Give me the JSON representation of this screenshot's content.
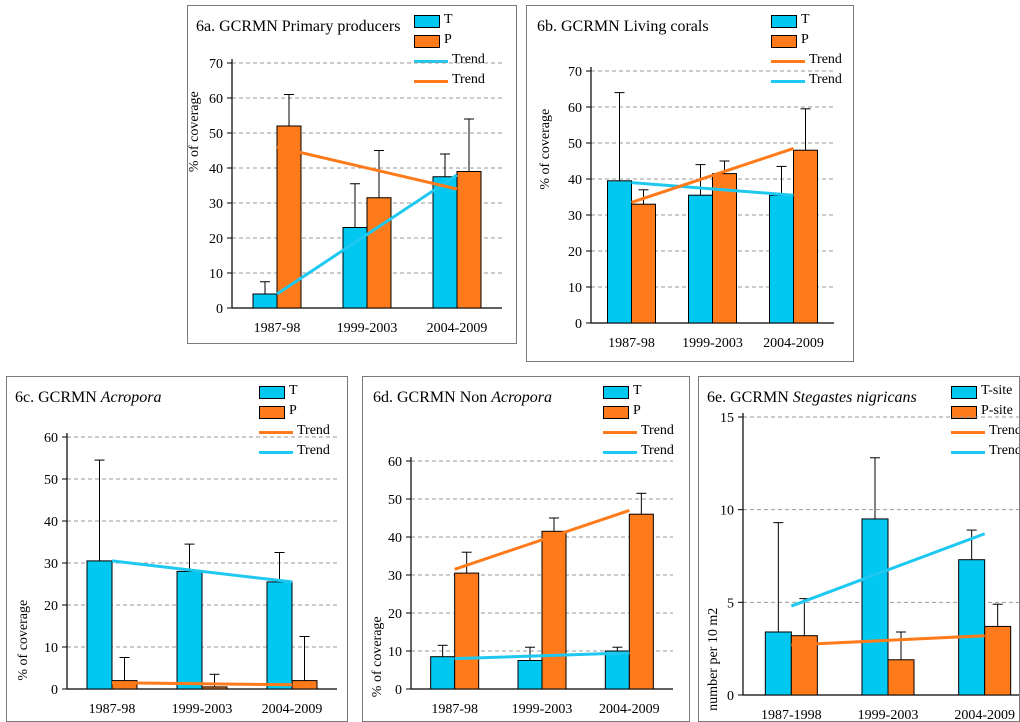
{
  "colors": {
    "T": "#00c8f0",
    "P": "#ff7a1a",
    "trend_T": "#1ec8f0",
    "trend_P": "#ff7a1a"
  },
  "chart_data": [
    {
      "id": "6a",
      "type": "bar",
      "title_prefix": "6a. GCRMN",
      "title_plain": "Primary producers",
      "title_italic": "",
      "title_suffix": "",
      "ylabel": "% of coverage",
      "ylim": [
        0,
        70
      ],
      "yticks": [
        0,
        10,
        20,
        30,
        40,
        50,
        60,
        70
      ],
      "categories": [
        "1987-98",
        "1999-2003",
        "2004-2009"
      ],
      "series": [
        {
          "name": "T",
          "values": [
            4,
            23,
            37.5
          ],
          "errors": [
            3.5,
            12.5,
            6.5
          ]
        },
        {
          "name": "P",
          "values": [
            52,
            31.5,
            39
          ],
          "errors": [
            9,
            13.5,
            15
          ]
        }
      ],
      "trends": [
        {
          "name": "Trend",
          "series": "T",
          "start": 4,
          "end": 38
        },
        {
          "name": "Trend",
          "series": "P",
          "start": 46,
          "end": 34
        }
      ],
      "legend": [
        {
          "label": "T",
          "kind": "box",
          "series": "T"
        },
        {
          "label": "P",
          "kind": "box",
          "series": "P"
        },
        {
          "label": "Trend",
          "kind": "line",
          "series": "T"
        },
        {
          "label": "Trend",
          "kind": "line",
          "series": "P"
        }
      ]
    },
    {
      "id": "6b",
      "type": "bar",
      "title_prefix": "6b. GCRMN",
      "title_plain": "Living corals",
      "title_italic": "",
      "title_suffix": "",
      "ylabel": "% of coverage",
      "ylim": [
        0,
        70
      ],
      "yticks": [
        0,
        10,
        20,
        30,
        40,
        50,
        60,
        70
      ],
      "categories": [
        "1987-98",
        "1999-2003",
        "2004-2009"
      ],
      "series": [
        {
          "name": "T",
          "values": [
            39.5,
            35.5,
            35.5
          ],
          "errors": [
            24.5,
            8.5,
            8
          ]
        },
        {
          "name": "P",
          "values": [
            33,
            41.5,
            48
          ],
          "errors": [
            4,
            3.5,
            11.5
          ]
        }
      ],
      "trends": [
        {
          "name": "Trend",
          "series": "T",
          "start": 39,
          "end": 35.5
        },
        {
          "name": "Trend",
          "series": "P",
          "start": 33.5,
          "end": 48.5
        }
      ],
      "legend": [
        {
          "label": "T",
          "kind": "box",
          "series": "T"
        },
        {
          "label": "P",
          "kind": "box",
          "series": "P"
        },
        {
          "label": "Trend",
          "kind": "line",
          "series": "P"
        },
        {
          "label": "Trend",
          "kind": "line",
          "series": "T"
        }
      ]
    },
    {
      "id": "6c",
      "type": "bar",
      "title_prefix": "6c. GCRMN",
      "title_plain": "",
      "title_italic": "Acropora",
      "title_suffix": "",
      "ylabel": "% of coverage",
      "ylim": [
        0,
        60
      ],
      "yticks": [
        0,
        10,
        20,
        30,
        40,
        50,
        60
      ],
      "categories": [
        "1987-98",
        "1999-2003",
        "2004-2009"
      ],
      "series": [
        {
          "name": "T",
          "values": [
            30.5,
            28,
            25.5
          ],
          "errors": [
            24,
            6.5,
            7
          ]
        },
        {
          "name": "P",
          "values": [
            2,
            0.5,
            2
          ],
          "errors": [
            5.5,
            3,
            10.5
          ]
        }
      ],
      "trends": [
        {
          "name": "Trend",
          "series": "P",
          "start": 1.5,
          "end": 1
        },
        {
          "name": "Trend",
          "series": "T",
          "start": 30.5,
          "end": 25.5
        }
      ],
      "legend": [
        {
          "label": "T",
          "kind": "box",
          "series": "T"
        },
        {
          "label": "P",
          "kind": "box",
          "series": "P"
        },
        {
          "label": "Trend",
          "kind": "line",
          "series": "P"
        },
        {
          "label": "Trend",
          "kind": "line",
          "series": "T"
        }
      ]
    },
    {
      "id": "6d",
      "type": "bar",
      "title_prefix": "6d. GCRMN",
      "title_plain": "Non",
      "title_italic": "Acropora",
      "title_suffix": "",
      "ylabel": "% of coverage",
      "ylim": [
        0,
        60
      ],
      "yticks": [
        0,
        10,
        20,
        30,
        40,
        50,
        60
      ],
      "categories": [
        "1987-98",
        "1999-2003",
        "2004-2009"
      ],
      "series": [
        {
          "name": "T",
          "values": [
            8.5,
            7.5,
            10
          ],
          "errors": [
            3,
            3.5,
            1
          ]
        },
        {
          "name": "P",
          "values": [
            30.5,
            41.5,
            46
          ],
          "errors": [
            5.5,
            3.5,
            5.5
          ]
        }
      ],
      "trends": [
        {
          "name": "Trend",
          "series": "P",
          "start": 31.5,
          "end": 47
        },
        {
          "name": "Trend",
          "series": "T",
          "start": 8,
          "end": 9.5
        }
      ],
      "legend": [
        {
          "label": "T",
          "kind": "box",
          "series": "T"
        },
        {
          "label": "P",
          "kind": "box",
          "series": "P"
        },
        {
          "label": "Trend",
          "kind": "line",
          "series": "P"
        },
        {
          "label": "Trend",
          "kind": "line",
          "series": "T"
        }
      ]
    },
    {
      "id": "6e",
      "type": "bar",
      "title_prefix": "6e. GCRMN",
      "title_plain": "",
      "title_italic": "Stegastes nigricans",
      "title_suffix": "",
      "ylabel": "number per 10 m2",
      "ylim": [
        0,
        15
      ],
      "yticks": [
        0,
        5,
        10,
        15
      ],
      "categories": [
        "1987-1998",
        "1999-2003",
        "2004-2009"
      ],
      "series": [
        {
          "name": "T-site",
          "values": [
            3.4,
            9.5,
            7.3
          ],
          "errors": [
            5.9,
            3.3,
            1.6
          ]
        },
        {
          "name": "P-site",
          "values": [
            3.2,
            1.9,
            3.7
          ],
          "errors": [
            2,
            1.5,
            1.2
          ]
        }
      ],
      "trends": [
        {
          "name": "Trend",
          "series": "P",
          "start": 2.7,
          "end": 3.2
        },
        {
          "name": "Trend",
          "series": "T",
          "start": 4.8,
          "end": 8.7
        }
      ],
      "legend": [
        {
          "label": "T-site",
          "kind": "box",
          "series": "T"
        },
        {
          "label": "P-site",
          "kind": "box",
          "series": "P"
        },
        {
          "label": "Trend",
          "kind": "line",
          "series": "P"
        },
        {
          "label": "Trend",
          "kind": "line",
          "series": "T"
        }
      ]
    }
  ]
}
